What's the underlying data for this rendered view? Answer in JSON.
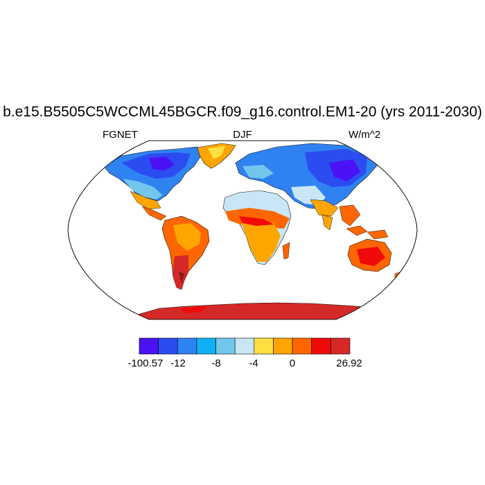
{
  "title": "b.e15.B5505C5WCCML45BGCR.f09_g16.control.EM1-20 (yrs 2011-2030)",
  "left_label": "FGNET",
  "center_label": "DJF",
  "right_label": "W/m^2",
  "colorbar": {
    "colors": [
      "#4b12f5",
      "#2b4cf0",
      "#2f82f2",
      "#0fb0f4",
      "#72c6ec",
      "#c8e6f5",
      "#ffe040",
      "#ffa500",
      "#ff6600",
      "#f00a0a",
      "#d52828"
    ],
    "labels": [
      "-100.57",
      "-12",
      "-8",
      "-4",
      "0",
      "26.92"
    ]
  }
}
